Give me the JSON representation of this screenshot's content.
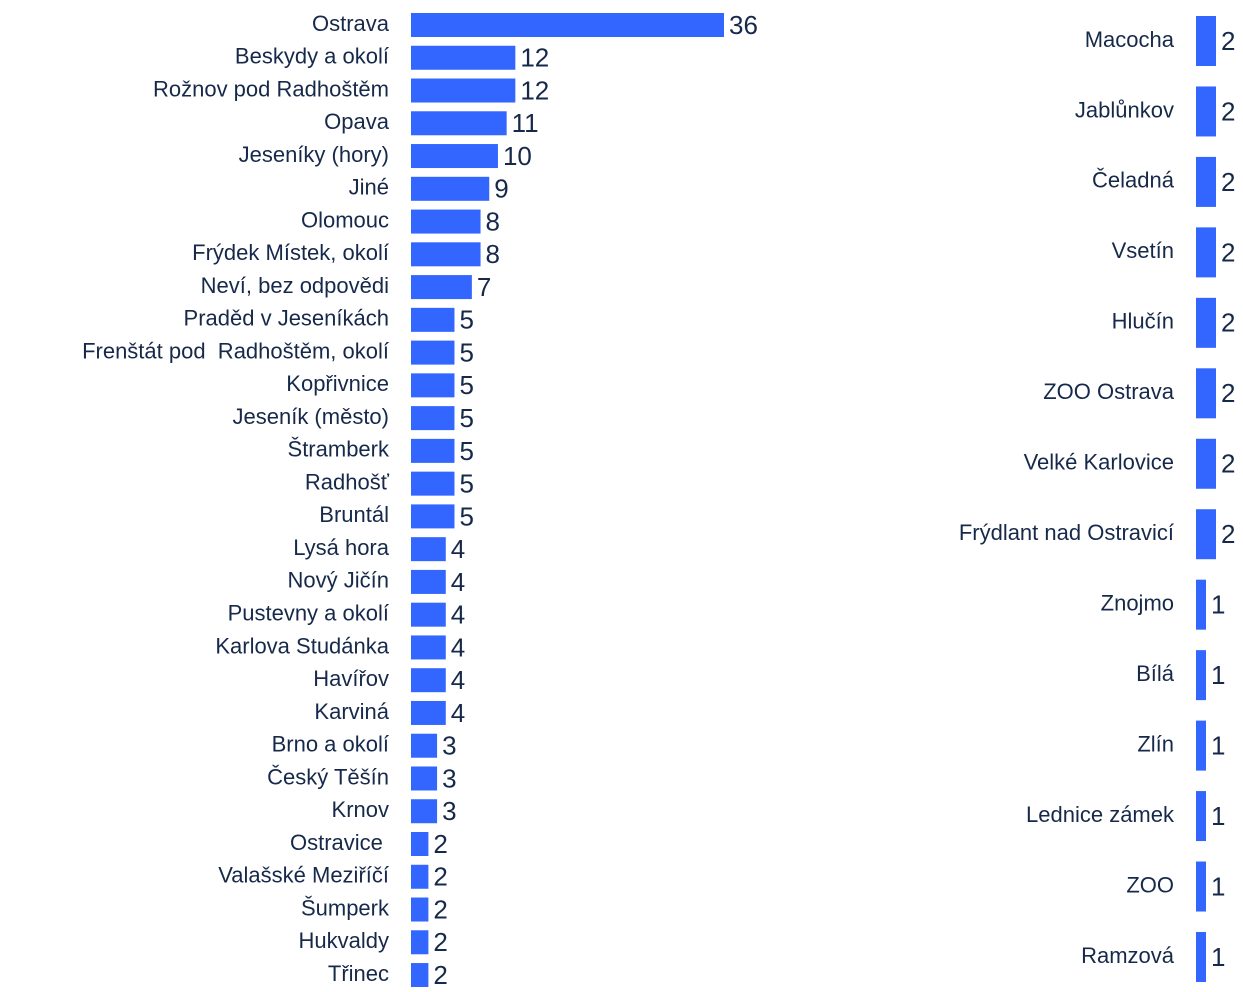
{
  "chart_data": [
    {
      "type": "bar",
      "orientation": "horizontal",
      "color": "#3366ff",
      "categories": [
        "Ostrava",
        "Beskydy a okolí",
        "Rožnov pod Radhoštěm",
        "Opava",
        "Jeseníky (hory)",
        "Jiné",
        "Olomouc",
        "Frýdek Místek, okolí",
        "Neví, bez odpovědi",
        "Praděd v Jeseníkách",
        "Frenštát pod  Radhoštěm, okolí",
        "Kopřivnice",
        "Jeseník (město)",
        "Štramberk",
        "Radhošť",
        "Bruntál",
        "Lysá hora",
        "Nový Jičín",
        "Pustevny a okolí",
        "Karlova Studánka",
        "Havířov",
        "Karviná",
        "Brno a okolí",
        "Český Těšín",
        "Krnov",
        "Ostravice ",
        "Valašské Meziříčí",
        "Šumperk",
        "Hukvaldy",
        "Třinec"
      ],
      "values": [
        36,
        12,
        12,
        11,
        10,
        9,
        8,
        8,
        7,
        5,
        5,
        5,
        5,
        5,
        5,
        5,
        4,
        4,
        4,
        4,
        4,
        4,
        3,
        3,
        3,
        2,
        2,
        2,
        2,
        2
      ],
      "xlim": [
        0,
        36
      ]
    },
    {
      "type": "bar",
      "orientation": "horizontal",
      "color": "#3366ff",
      "categories": [
        "Macocha",
        "Jablůnkov",
        "Čeladná",
        "Vsetín",
        "Hlučín",
        "ZOO Ostrava",
        "Velké Karlovice",
        "Frýdlant nad Ostravicí",
        "Znojmo",
        "Bílá",
        "Zlín",
        "Lednice zámek",
        "ZOO",
        "Ramzová"
      ],
      "values": [
        2,
        2,
        2,
        2,
        2,
        2,
        2,
        2,
        1,
        1,
        1,
        1,
        1,
        1
      ],
      "xlim": [
        0,
        6
      ]
    }
  ]
}
